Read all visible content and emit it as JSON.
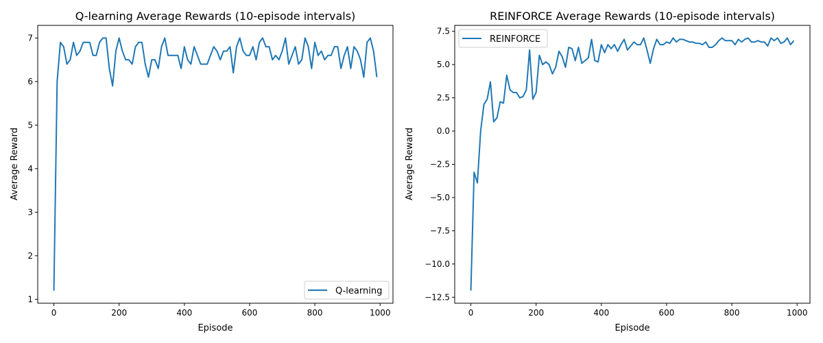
{
  "chart_data": [
    {
      "type": "line",
      "title": "Q-learning Average Rewards (10-episode intervals)",
      "xlabel": "Episode",
      "ylabel": "Average Reward",
      "xlim": [
        -49.5,
        1039.5
      ],
      "ylim": [
        0.91,
        7.29
      ],
      "xticks": [
        0,
        200,
        400,
        600,
        800,
        1000
      ],
      "xtick_labels": [
        "0",
        "200",
        "400",
        "600",
        "800",
        "1000"
      ],
      "yticks": [
        1,
        2,
        3,
        4,
        5,
        6,
        7
      ],
      "ytick_labels": [
        "1",
        "2",
        "3",
        "4",
        "5",
        "6",
        "7"
      ],
      "grid": false,
      "legend_position": "lower-right",
      "series": [
        {
          "name": "Q-learning",
          "color": "#1f77b4",
          "x_start": 0,
          "x_step": 10,
          "values": [
            1.2,
            6.0,
            6.9,
            6.8,
            6.4,
            6.5,
            6.9,
            6.6,
            6.7,
            6.9,
            6.9,
            6.9,
            6.6,
            6.6,
            6.9,
            7.0,
            7.0,
            6.3,
            5.9,
            6.7,
            7.0,
            6.7,
            6.5,
            6.5,
            6.4,
            6.8,
            6.9,
            6.9,
            6.4,
            6.1,
            6.5,
            6.5,
            6.3,
            6.8,
            7.0,
            6.6,
            6.6,
            6.6,
            6.6,
            6.3,
            6.8,
            6.5,
            6.4,
            6.8,
            6.6,
            6.4,
            6.4,
            6.4,
            6.6,
            6.8,
            6.7,
            6.5,
            6.7,
            6.7,
            6.8,
            6.2,
            6.8,
            7.0,
            6.7,
            6.6,
            6.6,
            6.8,
            6.5,
            6.9,
            7.0,
            6.8,
            6.8,
            6.5,
            6.6,
            6.5,
            6.7,
            7.0,
            6.4,
            6.6,
            6.8,
            6.4,
            6.5,
            7.0,
            6.8,
            6.3,
            6.9,
            6.6,
            6.7,
            6.5,
            6.6,
            6.6,
            6.8,
            6.8,
            6.3,
            6.6,
            6.8,
            6.3,
            6.8,
            6.7,
            6.5,
            6.1,
            6.9,
            7.0,
            6.7,
            6.1
          ]
        }
      ]
    },
    {
      "type": "line",
      "title": "REINFORCE Average Rewards (10-episode intervals)",
      "xlabel": "Episode",
      "ylabel": "Average Reward",
      "xlim": [
        -49.5,
        1039.5
      ],
      "ylim": [
        -12.95,
        7.95
      ],
      "xticks": [
        0,
        200,
        400,
        600,
        800,
        1000
      ],
      "xtick_labels": [
        "0",
        "200",
        "400",
        "600",
        "800",
        "1000"
      ],
      "yticks": [
        -12.5,
        -10,
        -7.5,
        -5,
        -2.5,
        0,
        2.5,
        5,
        7.5
      ],
      "ytick_labels": [
        "−12.5",
        "−10.0",
        "−7.5",
        "−5.0",
        "−2.5",
        "0.0",
        "2.5",
        "5.0",
        "7.5"
      ],
      "grid": false,
      "legend_position": "upper-left",
      "series": [
        {
          "name": "REINFORCE",
          "color": "#1f77b4",
          "x_start": 0,
          "x_step": 10,
          "values": [
            -12,
            -3.1,
            -3.9,
            0,
            2.0,
            2.4,
            3.7,
            0.7,
            1.0,
            2.2,
            2.1,
            4.2,
            3.1,
            2.9,
            2.9,
            2.5,
            2.6,
            3.1,
            6.1,
            2.4,
            2.9,
            5.7,
            5.0,
            5.2,
            5.0,
            4.3,
            4.8,
            6.0,
            5.6,
            4.8,
            6.3,
            6.2,
            5.3,
            6.3,
            5.1,
            5.3,
            5.5,
            6.9,
            5.3,
            5.2,
            6.5,
            5.9,
            6.5,
            6.2,
            6.5,
            6.0,
            6.5,
            6.9,
            6.1,
            6.4,
            6.7,
            6.5,
            6.5,
            7.0,
            6.1,
            5.1,
            6.2,
            6.9,
            6.5,
            6.5,
            6.7,
            6.6,
            7.0,
            6.7,
            6.9,
            6.9,
            6.8,
            6.7,
            6.7,
            6.6,
            6.6,
            6.5,
            6.7,
            6.3,
            6.3,
            6.5,
            6.8,
            7.0,
            6.8,
            6.8,
            6.8,
            6.5,
            6.9,
            6.7,
            6.9,
            7.0,
            6.7,
            6.7,
            6.8,
            6.7,
            6.7,
            6.4,
            7.0,
            6.8,
            7.0,
            6.6,
            6.7,
            7.0,
            6.5,
            6.8
          ]
        }
      ]
    }
  ]
}
